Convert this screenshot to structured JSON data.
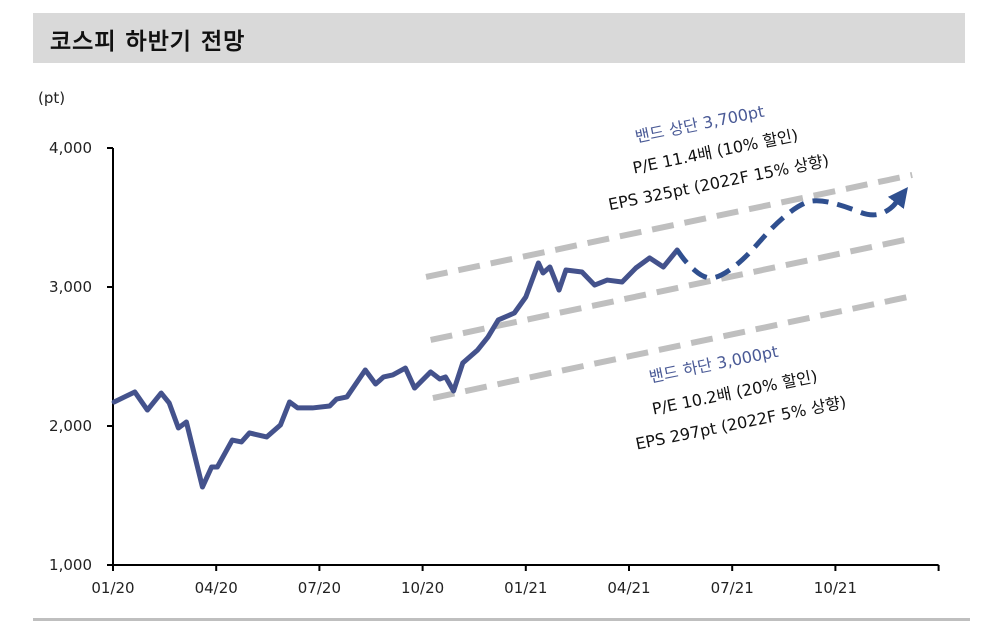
{
  "header": {
    "title": "코스피 하반기 전망"
  },
  "chart_data": {
    "type": "line",
    "title": "코스피 하반기 전망",
    "ylabel": "(pt)",
    "ylim": [
      1000,
      4000
    ],
    "yticks": [
      1000,
      2000,
      3000,
      4000
    ],
    "ytick_labels": [
      "1,000",
      "2,000",
      "3,000",
      "4,000"
    ],
    "xlim": [
      "2020-01-01",
      "2021-12-31"
    ],
    "xticks": [
      "2020-01-01",
      "2020-04-01",
      "2020-07-01",
      "2020-10-01",
      "2021-01-01",
      "2021-04-01",
      "2021-07-01",
      "2021-10-01",
      "2021-12-31"
    ],
    "xtick_labels": [
      "01/20",
      "04/20",
      "07/20",
      "10/20",
      "01/21",
      "04/21",
      "07/21",
      "10/21",
      ""
    ],
    "grid": false,
    "colors": {
      "kospi": "#44528c",
      "forecast": "#2f4f8f",
      "band": "#bfbfbf",
      "band_label": "#4a5a96"
    },
    "series": [
      {
        "kind": "actual",
        "points": [
          [
            "2020-01-02",
            2173
          ],
          [
            "2020-01-20",
            2245
          ],
          [
            "2020-02-01",
            2115
          ],
          [
            "2020-02-13",
            2237
          ],
          [
            "2020-02-20",
            2166
          ],
          [
            "2020-02-28",
            1986
          ],
          [
            "2020-03-05",
            2029
          ],
          [
            "2020-03-19",
            1561
          ],
          [
            "2020-03-27",
            1705
          ],
          [
            "2020-04-02",
            1705
          ],
          [
            "2020-04-15",
            1899
          ],
          [
            "2020-04-23",
            1885
          ],
          [
            "2020-04-30",
            1950
          ],
          [
            "2020-05-15",
            1921
          ],
          [
            "2020-05-27",
            2007
          ],
          [
            "2020-06-05",
            2173
          ],
          [
            "2020-06-12",
            2130
          ],
          [
            "2020-06-25",
            2130
          ],
          [
            "2020-07-10",
            2144
          ],
          [
            "2020-07-16",
            2194
          ],
          [
            "2020-07-25",
            2209
          ],
          [
            "2020-08-11",
            2403
          ],
          [
            "2020-08-20",
            2302
          ],
          [
            "2020-08-27",
            2353
          ],
          [
            "2020-09-05",
            2367
          ],
          [
            "2020-09-16",
            2417
          ],
          [
            "2020-09-24",
            2273
          ],
          [
            "2020-10-08",
            2389
          ],
          [
            "2020-10-16",
            2338
          ],
          [
            "2020-10-21",
            2353
          ],
          [
            "2020-10-28",
            2252
          ],
          [
            "2020-11-06",
            2453
          ],
          [
            "2020-11-19",
            2547
          ],
          [
            "2020-11-28",
            2640
          ],
          [
            "2020-12-07",
            2763
          ],
          [
            "2020-12-21",
            2813
          ],
          [
            "2021-01-01",
            2928
          ],
          [
            "2021-01-12",
            3173
          ],
          [
            "2021-01-16",
            3101
          ],
          [
            "2021-01-22",
            3144
          ],
          [
            "2021-01-30",
            2978
          ],
          [
            "2021-02-06",
            3122
          ],
          [
            "2021-02-20",
            3108
          ],
          [
            "2021-03-01",
            3014
          ],
          [
            "2021-03-12",
            3050
          ],
          [
            "2021-03-25",
            3036
          ],
          [
            "2021-04-07",
            3137
          ],
          [
            "2021-04-19",
            3209
          ],
          [
            "2021-05-01",
            3144
          ],
          [
            "2021-05-13",
            3266
          ]
        ]
      },
      {
        "kind": "forecast",
        "points": [
          [
            "2021-05-13",
            3266
          ],
          [
            "2021-05-21",
            3173
          ],
          [
            "2021-06-06",
            3065
          ],
          [
            "2021-06-19",
            3065
          ],
          [
            "2021-07-11",
            3194
          ],
          [
            "2021-08-09",
            3460
          ],
          [
            "2021-09-03",
            3612
          ],
          [
            "2021-09-19",
            3626
          ],
          [
            "2021-10-11",
            3576
          ],
          [
            "2021-11-03",
            3504
          ],
          [
            "2021-11-19",
            3554
          ],
          [
            "2021-11-29",
            3662
          ]
        ]
      }
    ],
    "bands": [
      {
        "kind": "upper",
        "from": [
          "2020-10-04",
          3072
        ],
        "to": [
          "2021-12-08",
          3806
        ]
      },
      {
        "kind": "middle",
        "from": [
          "2020-10-08",
          2619
        ],
        "to": [
          "2021-12-10",
          3353
        ]
      },
      {
        "kind": "lower",
        "from": [
          "2020-10-10",
          2201
        ],
        "to": [
          "2021-12-12",
          2942
        ]
      }
    ],
    "annotations": {
      "upper": {
        "title": "밴드 상단 3,700pt",
        "pe": "P/E 11.4배  (10% 할인)",
        "eps": "EPS  325pt  (2022F  15% 상향)"
      },
      "lower": {
        "title": "밴드 하단 3,000pt",
        "pe": "P/E 10.2배  (20% 할인)",
        "eps": "EPS  297pt  (2022F  5% 상향)"
      }
    }
  }
}
